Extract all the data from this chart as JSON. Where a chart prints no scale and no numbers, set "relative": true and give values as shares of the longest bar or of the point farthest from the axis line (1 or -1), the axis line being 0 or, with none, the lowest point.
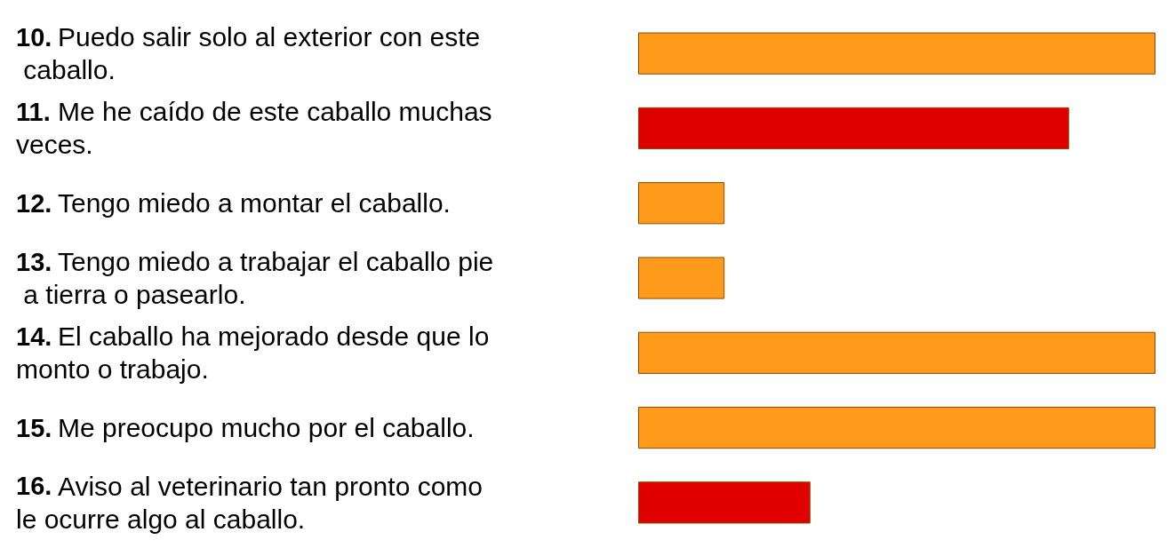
{
  "chart_data": {
    "type": "bar",
    "orientation": "horizontal",
    "relative": true,
    "categories": [
      "10. Puedo salir solo al exterior con este caballo.",
      "11. Me he caído de este caballo muchas veces.",
      "12. Tengo miedo a montar el caballo.",
      "13. Tengo miedo a trabajar el caballo pie a tierra o pasearlo.",
      "14. El caballo ha mejorado desde que lo monto o trabajo.",
      "15. Me preocupo mucho por el caballo.",
      "16. Aviso al veterinario tan pronto como le ocurre algo al caballo."
    ],
    "values": [
      1,
      0.833,
      0.167,
      0.167,
      1,
      1,
      0.333
    ],
    "colors": [
      "#ff9a1a",
      "#e00000",
      "#ff9a1a",
      "#ff9a1a",
      "#ff9a1a",
      "#ff9a1a",
      "#e00000"
    ],
    "data_labels": false
  }
}
